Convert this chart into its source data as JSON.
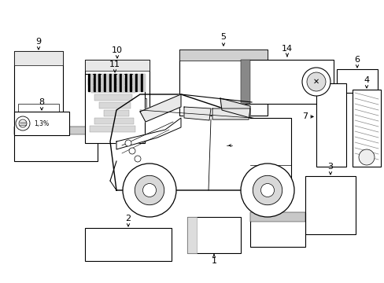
{
  "bg_color": "#ffffff",
  "ec": "#000000",
  "fc": "#ffffff",
  "lw": 0.8,
  "fig_w": 4.89,
  "fig_h": 3.6,
  "dpi": 100
}
